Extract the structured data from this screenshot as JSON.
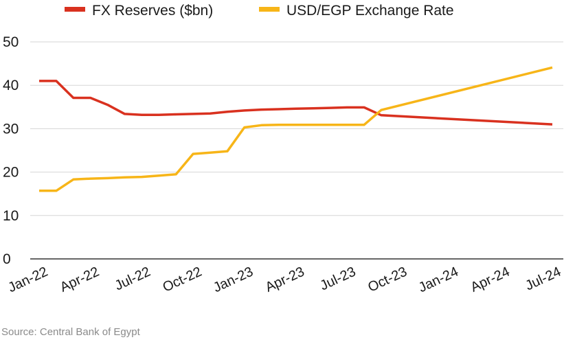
{
  "chart_data": {
    "type": "line",
    "title": "",
    "xlabel": "",
    "ylabel": "",
    "ylim": [
      0,
      50
    ],
    "y_ticks": [
      0,
      10,
      20,
      30,
      40,
      50
    ],
    "x_tick_labels": [
      "Jan-22",
      "Apr-22",
      "Jul-22",
      "Oct-22",
      "Jan-23",
      "Apr-23",
      "Jul-23",
      "Oct-23",
      "Jan-24",
      "Apr-24",
      "Jul-24"
    ],
    "x": [
      "Jan-22",
      "Feb-22",
      "Mar-22",
      "Apr-22",
      "May-22",
      "Jun-22",
      "Jul-22",
      "Aug-22",
      "Sep-22",
      "Oct-22",
      "Nov-22",
      "Dec-22",
      "Jan-23",
      "Feb-23",
      "Mar-23",
      "Apr-23",
      "May-23",
      "Jun-23",
      "Jul-23",
      "Aug-23",
      "Sep-23",
      "Jul-24"
    ],
    "series": [
      {
        "name": "FX Reserves ($bn)",
        "color": "#d9311f",
        "values": [
          41.0,
          41.0,
          37.1,
          37.1,
          35.5,
          33.4,
          33.2,
          33.2,
          33.3,
          33.4,
          33.5,
          33.9,
          34.2,
          34.4,
          34.5,
          34.6,
          34.7,
          34.8,
          34.9,
          34.9,
          33.1,
          31.0
        ]
      },
      {
        "name": "USD/EGP Exchange Rate",
        "color": "#f7b518",
        "values": [
          15.7,
          15.7,
          18.3,
          18.5,
          18.6,
          18.8,
          18.9,
          19.2,
          19.5,
          24.2,
          24.5,
          24.8,
          30.3,
          30.8,
          30.9,
          30.9,
          30.9,
          30.9,
          30.9,
          30.9,
          34.3,
          44.1
        ]
      }
    ],
    "grid": "horizontal",
    "legend_position": "top"
  },
  "source": "Source: Central Bank of Egypt"
}
